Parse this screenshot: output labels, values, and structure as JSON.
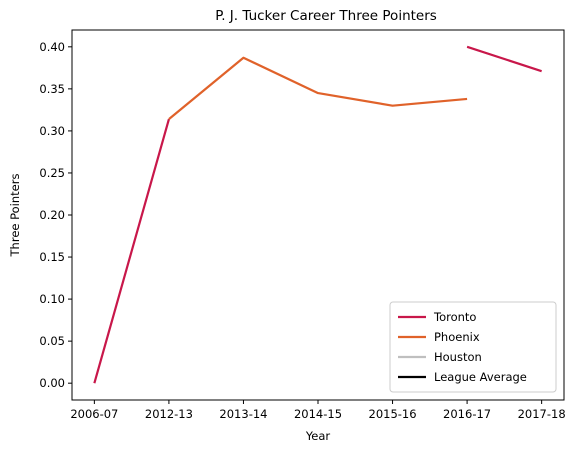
{
  "chart_data": {
    "type": "line",
    "title": "P. J. Tucker Career Three Pointers",
    "xlabel": "Year",
    "ylabel": "Three Pointers",
    "categories": [
      "2006-07",
      "2012-13",
      "2013-14",
      "2014-15",
      "2015-16",
      "2016-17",
      "2017-18"
    ],
    "ylim": [
      -0.02,
      0.42
    ],
    "yticks": [
      0.0,
      0.05,
      0.1,
      0.15,
      0.2,
      0.25,
      0.3,
      0.35,
      0.4
    ],
    "legend_position": "lower-right",
    "grid": false,
    "series": [
      {
        "name": "Toronto",
        "color": "#c8174a",
        "points": [
          {
            "x": "2006-07",
            "y": 0.0
          },
          {
            "x": "2012-13",
            "y": 0.314
          }
        ]
      },
      {
        "name": "Phoenix",
        "color": "#e0622a",
        "points": [
          {
            "x": "2012-13",
            "y": 0.314
          },
          {
            "x": "2013-14",
            "y": 0.387
          },
          {
            "x": "2014-15",
            "y": 0.345
          },
          {
            "x": "2015-16",
            "y": 0.33
          },
          {
            "x": "2016-17",
            "y": 0.338
          }
        ]
      },
      {
        "name": "Toronto",
        "color": "#c8174a",
        "legend": false,
        "points": [
          {
            "x": "2016-17",
            "y": 0.4
          },
          {
            "x": "2017-18",
            "y": 0.371
          }
        ]
      },
      {
        "name": "Houston",
        "color": "#bfbfbf",
        "points": []
      },
      {
        "name": "League Average",
        "color": "#000000",
        "points": []
      }
    ]
  }
}
